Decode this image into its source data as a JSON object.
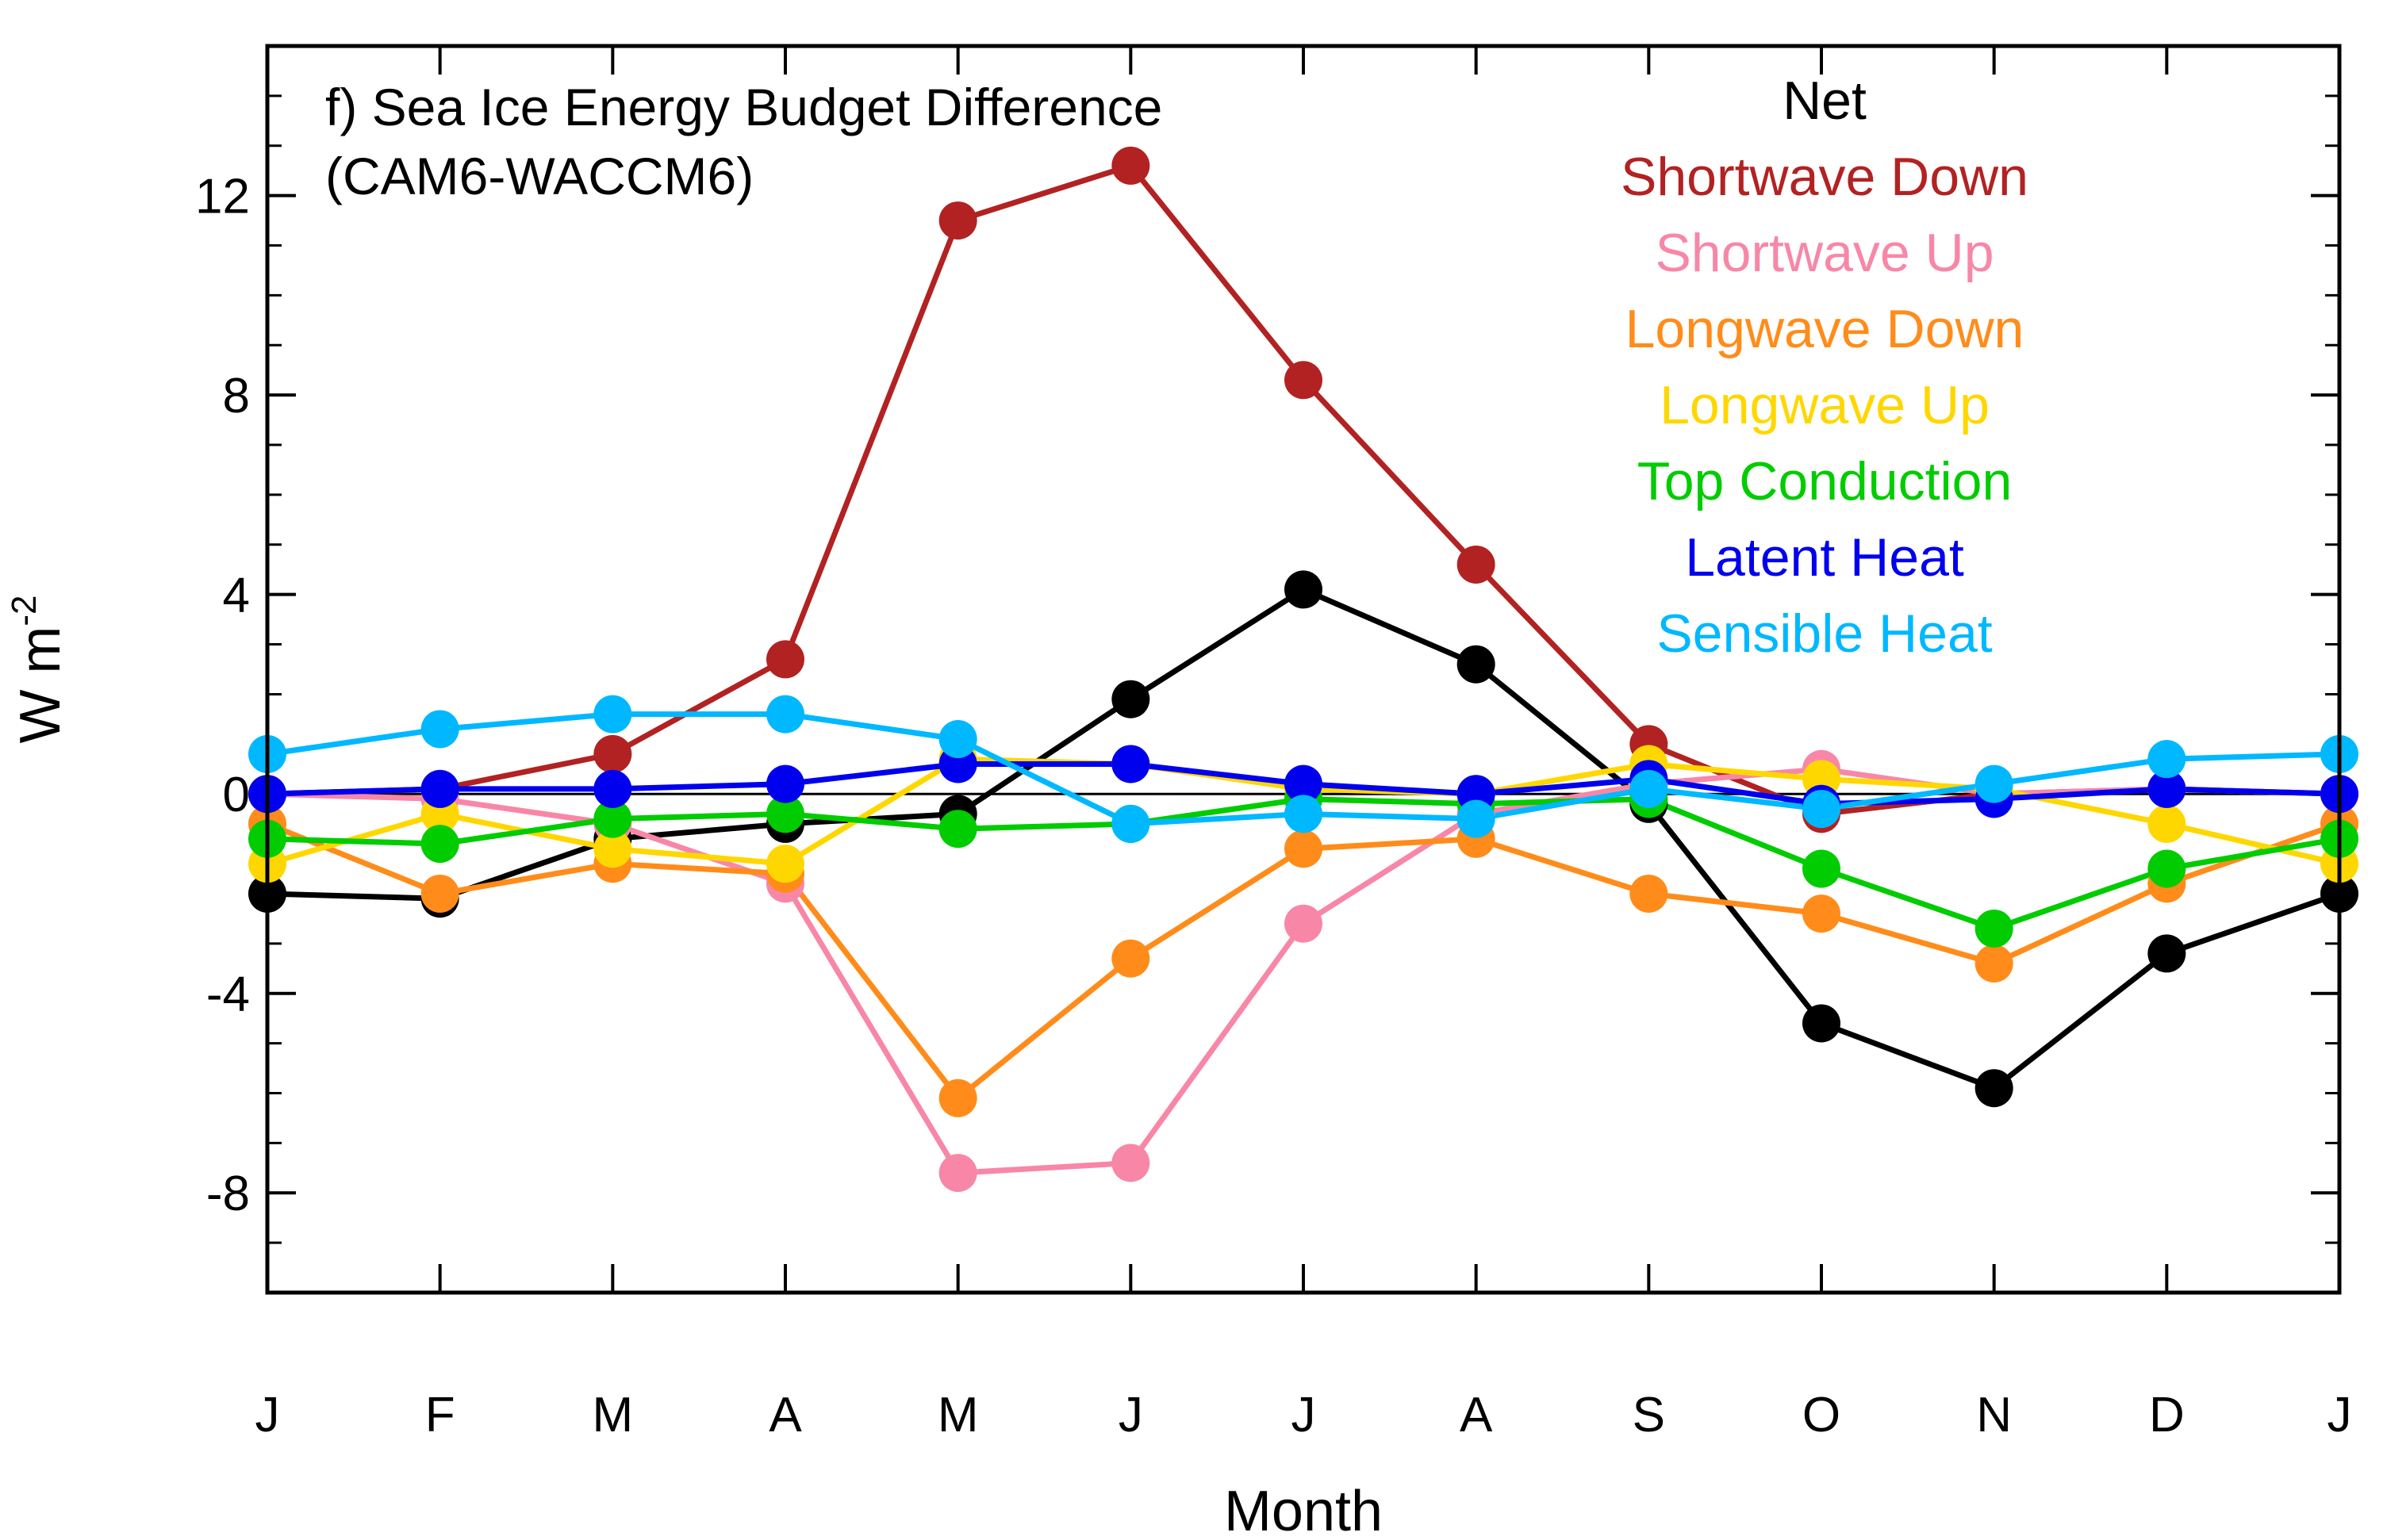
{
  "chart_data": {
    "type": "line",
    "title": "f) Sea Ice Energy Budget Difference",
    "subtitle": "(CAM6-WACCM6)",
    "xlabel": "Month",
    "ylabel_main": "W m",
    "ylabel_sup": "-2",
    "categories": [
      "J",
      "F",
      "M",
      "A",
      "M",
      "J",
      "J",
      "A",
      "S",
      "O",
      "N",
      "D",
      "J"
    ],
    "ylim": [
      -10,
      15
    ],
    "yticks": [
      -8,
      -4,
      0,
      4,
      8,
      12
    ],
    "ytick_labels": [
      "-8",
      "-4",
      "0",
      "4",
      "8",
      "12"
    ],
    "yminor_step": 1,
    "zero_line": true,
    "legend_position": "top-right",
    "series": [
      {
        "name": "Net",
        "color": "#000000",
        "values": [
          -2.0,
          -2.1,
          -0.9,
          -0.6,
          -0.4,
          1.9,
          4.1,
          2.6,
          -0.2,
          -4.6,
          -5.9,
          -3.2,
          -2.0
        ]
      },
      {
        "name": "Shortwave Down",
        "color": "#b22222",
        "values": [
          0.0,
          0.1,
          0.8,
          2.7,
          11.5,
          12.6,
          8.3,
          4.6,
          1.0,
          -0.4,
          0.0,
          0.1,
          0.0
        ]
      },
      {
        "name": "Shortwave Up",
        "color": "#f887a7",
        "values": [
          0.0,
          -0.1,
          -0.6,
          -1.8,
          -7.6,
          -7.4,
          -2.6,
          -0.4,
          0.2,
          0.5,
          0.0,
          0.1,
          0.0
        ]
      },
      {
        "name": "Longwave Down",
        "color": "#ff8c1a",
        "values": [
          -0.6,
          -2.0,
          -1.4,
          -1.6,
          -6.1,
          -3.3,
          -1.1,
          -0.9,
          -2.0,
          -2.4,
          -3.4,
          -1.8,
          -0.6
        ]
      },
      {
        "name": "Longwave Up",
        "color": "#ffd700",
        "values": [
          -1.4,
          -0.4,
          -1.1,
          -1.4,
          0.7,
          0.6,
          0.1,
          0.0,
          0.6,
          0.3,
          0.1,
          -0.6,
          -1.4
        ]
      },
      {
        "name": "Top Conduction",
        "color": "#00cc00",
        "values": [
          -0.9,
          -1.0,
          -0.5,
          -0.4,
          -0.7,
          -0.6,
          -0.1,
          -0.2,
          -0.1,
          -1.5,
          -2.7,
          -1.5,
          -0.9
        ]
      },
      {
        "name": "Latent Heat",
        "color": "#0000ee",
        "values": [
          0.0,
          0.1,
          0.1,
          0.2,
          0.6,
          0.6,
          0.2,
          0.0,
          0.3,
          -0.2,
          -0.1,
          0.1,
          0.0
        ]
      },
      {
        "name": "Sensible Heat",
        "color": "#00b8ff",
        "values": [
          0.8,
          1.3,
          1.6,
          1.6,
          1.1,
          -0.6,
          -0.4,
          -0.5,
          0.1,
          -0.3,
          0.2,
          0.7,
          0.8
        ]
      }
    ]
  }
}
